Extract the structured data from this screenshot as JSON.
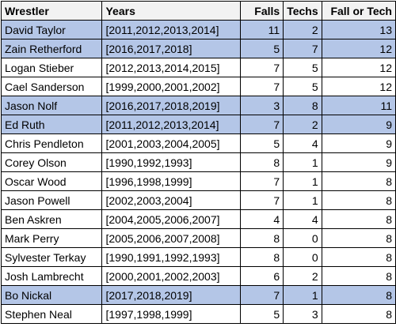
{
  "table": {
    "header": [
      "Wrestler",
      "Years",
      "Falls",
      "Techs",
      "Fall or Tech"
    ],
    "rows": [
      [
        "David Taylor",
        "[2011,2012,2013,2014]",
        11,
        2,
        13
      ],
      [
        "Zain Retherford",
        "[2016,2017,2018]",
        5,
        7,
        12
      ],
      [
        "Logan Stieber",
        "[2012,2013,2014,2015]",
        7,
        5,
        12
      ],
      [
        "Cael Sanderson",
        "[1999,2000,2001,2002]",
        7,
        5,
        12
      ],
      [
        "Jason Nolf",
        "[2016,2017,2018,2019]",
        3,
        8,
        11
      ],
      [
        "Ed Ruth",
        "[2011,2012,2013,2014]",
        7,
        2,
        9
      ],
      [
        "Chris Pendleton",
        "[2001,2003,2004,2005]",
        5,
        4,
        9
      ],
      [
        "Corey Olson",
        "[1990,1992,1993]",
        8,
        1,
        9
      ],
      [
        "Oscar Wood",
        "[1996,1998,1999]",
        7,
        1,
        8
      ],
      [
        "Jason Powell",
        "[2002,2003,2004]",
        7,
        1,
        8
      ],
      [
        "Ben Askren",
        "[2004,2005,2006,2007]",
        4,
        4,
        8
      ],
      [
        "Mark Perry",
        "[2005,2006,2007,2008]",
        8,
        0,
        8
      ],
      [
        "Sylvester Terkay",
        "[1990,1991,1992,1993]",
        8,
        0,
        8
      ],
      [
        "Josh Lambrecht",
        "[2000,2001,2002,2003]",
        6,
        2,
        8
      ],
      [
        "Bo Nickal",
        "[2017,2018,2019]",
        7,
        1,
        8
      ],
      [
        "Stephen Neal",
        "[1997,1998,1999]",
        5,
        3,
        8
      ]
    ]
  }
}
